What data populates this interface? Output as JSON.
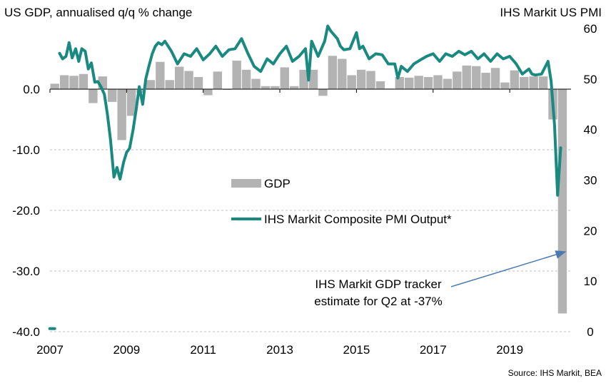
{
  "chart_data": {
    "type": "bar",
    "left_axis_title": "US GDP, annualised q/q % change",
    "right_axis_title": "IHS Markit  US PMI",
    "left_ylim": [
      -40,
      10
    ],
    "left_ticks": [
      "0.0",
      "-10.0",
      "-20.0",
      "-30.0",
      "-40.0"
    ],
    "left_tick_values": [
      0,
      -10,
      -20,
      -30,
      -40
    ],
    "right_ylim": [
      0,
      60
    ],
    "right_ticks": [
      "60",
      "50",
      "40",
      "30",
      "20",
      "10",
      "0"
    ],
    "right_tick_values": [
      60,
      50,
      40,
      30,
      20,
      10,
      0
    ],
    "x_ticks": [
      "2007",
      "2009",
      "2011",
      "2013",
      "2015",
      "2017",
      "2019"
    ],
    "x_tick_values": [
      2007,
      2009,
      2011,
      2013,
      2015,
      2017,
      2019
    ],
    "xlim": [
      2007,
      2020.6
    ],
    "grid": "horizontal dashed at left-axis ticks",
    "series": [
      {
        "name": "GDP",
        "type": "bar",
        "axis": "left",
        "color": "#b3b3b3",
        "x": [
          2007.0,
          2007.25,
          2007.5,
          2007.75,
          2008.0,
          2008.25,
          2008.5,
          2008.75,
          2009.0,
          2009.25,
          2009.5,
          2009.75,
          2010.0,
          2010.25,
          2010.5,
          2010.75,
          2011.0,
          2011.25,
          2011.5,
          2011.75,
          2012.0,
          2012.25,
          2012.5,
          2012.75,
          2013.0,
          2013.25,
          2013.5,
          2013.75,
          2014.0,
          2014.25,
          2014.5,
          2014.75,
          2015.0,
          2015.25,
          2015.5,
          2015.75,
          2016.0,
          2016.25,
          2016.5,
          2016.75,
          2017.0,
          2017.25,
          2017.5,
          2017.75,
          2018.0,
          2018.25,
          2018.5,
          2018.75,
          2019.0,
          2019.25,
          2019.5,
          2019.75,
          2020.0,
          2020.25
        ],
        "values": [
          0.9,
          2.3,
          2.2,
          2.5,
          -2.3,
          2.1,
          -2.1,
          -8.4,
          -4.4,
          -0.6,
          1.5,
          4.5,
          1.5,
          3.7,
          3.0,
          2.0,
          -1.0,
          2.9,
          -0.1,
          4.7,
          3.2,
          1.7,
          0.5,
          0.5,
          3.6,
          0.5,
          3.2,
          3.2,
          -1.1,
          5.5,
          5.0,
          2.3,
          3.2,
          3.0,
          1.3,
          0.1,
          2.0,
          1.9,
          2.2,
          2.0,
          2.3,
          1.7,
          2.9,
          3.9,
          3.8,
          2.7,
          3.5,
          1.1,
          3.1,
          2.0,
          2.1,
          2.1,
          -5.0,
          -37.0
        ]
      },
      {
        "name": "IHS Markit Composite PMI Output*",
        "type": "line",
        "axis": "right",
        "color": "#1a8a80",
        "x": [
          2007.25,
          2007.33,
          2007.42,
          2007.5,
          2007.58,
          2007.67,
          2007.75,
          2007.83,
          2007.92,
          2008.0,
          2008.08,
          2008.17,
          2008.25,
          2008.33,
          2008.42,
          2008.5,
          2008.58,
          2008.67,
          2008.75,
          2008.83,
          2008.92,
          2009.0,
          2009.08,
          2009.17,
          2009.25,
          2009.33,
          2009.42,
          2009.5,
          2009.58,
          2009.67,
          2009.75,
          2009.83,
          2009.92,
          2010.0,
          2010.17,
          2010.33,
          2010.5,
          2010.67,
          2010.83,
          2011.0,
          2011.17,
          2011.33,
          2011.5,
          2011.67,
          2011.83,
          2012.0,
          2012.17,
          2012.33,
          2012.5,
          2012.67,
          2012.83,
          2013.0,
          2013.17,
          2013.33,
          2013.5,
          2013.67,
          2013.75,
          2013.83,
          2014.0,
          2014.17,
          2014.25,
          2014.33,
          2014.5,
          2014.58,
          2014.67,
          2014.83,
          2015.0,
          2015.08,
          2015.17,
          2015.33,
          2015.5,
          2015.67,
          2015.83,
          2016.0,
          2016.08,
          2016.17,
          2016.33,
          2016.5,
          2016.67,
          2016.83,
          2017.0,
          2017.17,
          2017.33,
          2017.5,
          2017.67,
          2017.83,
          2018.0,
          2018.17,
          2018.33,
          2018.5,
          2018.67,
          2018.83,
          2019.0,
          2019.17,
          2019.33,
          2019.5,
          2019.58,
          2019.67,
          2019.83,
          2020.0,
          2020.08,
          2020.17,
          2020.25,
          2020.33
        ],
        "values": [
          55.1,
          54.0,
          54.5,
          57.2,
          54.2,
          56.0,
          53.5,
          56.0,
          55.5,
          52.0,
          53.2,
          49.4,
          49.5,
          48.5,
          47.0,
          43.0,
          38.0,
          30.6,
          32.5,
          30.2,
          33.5,
          35.5,
          36.3,
          40.0,
          44.0,
          48.5,
          45.0,
          50.0,
          52.5,
          55.0,
          56.5,
          57.2,
          56.8,
          57.5,
          55.5,
          53.0,
          55.0,
          54.5,
          56.0,
          53.8,
          55.0,
          56.5,
          54.5,
          55.8,
          56.0,
          58.0,
          55.0,
          52.5,
          51.5,
          54.0,
          53.0,
          55.0,
          56.5,
          53.5,
          54.5,
          56.0,
          49.8,
          57.5,
          54.5,
          57.5,
          60.5,
          59.5,
          58.0,
          56.5,
          55.8,
          56.0,
          59.2,
          56.0,
          56.5,
          54.0,
          55.0,
          54.8,
          53.0,
          53.0,
          50.2,
          52.5,
          51.5,
          53.0,
          53.8,
          54.5,
          55.0,
          53.5,
          55.0,
          54.5,
          55.5,
          54.8,
          55.5,
          54.0,
          55.0,
          53.5,
          55.0,
          54.0,
          54.5,
          53.0,
          51.0,
          52.0,
          51.0,
          50.8,
          51.0,
          53.5,
          49.6,
          40.9,
          27.0,
          36.4
        ],
        "isolated_point": {
          "x": 2007.05,
          "value": 0.6
        }
      }
    ],
    "annotation": {
      "lines": [
        "IHS Markit  GDP tracker",
        "estimate for Q2 at -37%"
      ],
      "arrow_color": "#4c7ab0"
    },
    "source": "Source: IHS Markit, BEA"
  }
}
